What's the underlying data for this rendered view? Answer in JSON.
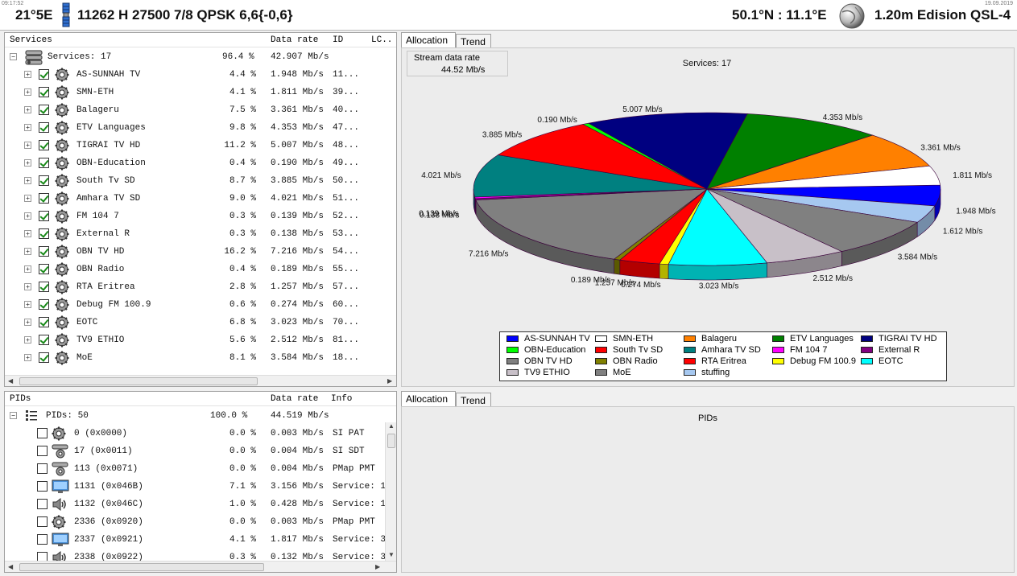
{
  "top_bar": {
    "time": "09:17:52",
    "date": "19.09.2019",
    "satellite_pos": "21°5E",
    "transponder": "11262 H 27500 7/8 QPSK 6,6{-0,6}",
    "coords": "50.1°N : 11.1°E",
    "dish": "1.20m Edision QSL-4"
  },
  "services": {
    "columns": {
      "name": "Services",
      "rate": "Data rate",
      "id": "ID",
      "lc": "LC.."
    },
    "root": {
      "label": "Services: 17",
      "pct": "96.4 %",
      "rate": "42.907 Mb/s"
    },
    "rows": [
      {
        "name": "AS-SUNNAH TV",
        "pct": "4.4 %",
        "rate": "1.948 Mb/s",
        "id": "11..."
      },
      {
        "name": "SMN-ETH",
        "pct": "4.1 %",
        "rate": "1.811 Mb/s",
        "id": "39..."
      },
      {
        "name": "Balageru",
        "pct": "7.5 %",
        "rate": "3.361 Mb/s",
        "id": "40..."
      },
      {
        "name": "ETV Languages",
        "pct": "9.8 %",
        "rate": "4.353 Mb/s",
        "id": "47..."
      },
      {
        "name": "TIGRAI TV HD",
        "pct": "11.2 %",
        "rate": "5.007 Mb/s",
        "id": "48..."
      },
      {
        "name": "OBN-Education",
        "pct": "0.4 %",
        "rate": "0.190 Mb/s",
        "id": "49..."
      },
      {
        "name": "South Tv SD",
        "pct": "8.7 %",
        "rate": "3.885 Mb/s",
        "id": "50..."
      },
      {
        "name": "Amhara TV SD",
        "pct": "9.0 %",
        "rate": "4.021 Mb/s",
        "id": "51..."
      },
      {
        "name": "FM 104 7",
        "pct": "0.3 %",
        "rate": "0.139 Mb/s",
        "id": "52..."
      },
      {
        "name": "External R",
        "pct": "0.3 %",
        "rate": "0.138 Mb/s",
        "id": "53..."
      },
      {
        "name": "OBN TV HD",
        "pct": "16.2 %",
        "rate": "7.216 Mb/s",
        "id": "54..."
      },
      {
        "name": "OBN Radio",
        "pct": "0.4 %",
        "rate": "0.189 Mb/s",
        "id": "55..."
      },
      {
        "name": "RTA Eritrea",
        "pct": "2.8 %",
        "rate": "1.257 Mb/s",
        "id": "57..."
      },
      {
        "name": "Debug FM 100.9",
        "pct": "0.6 %",
        "rate": "0.274 Mb/s",
        "id": "60..."
      },
      {
        "name": "EOTC",
        "pct": "6.8 %",
        "rate": "3.023 Mb/s",
        "id": "70..."
      },
      {
        "name": "TV9 ETHIO",
        "pct": "5.6 %",
        "rate": "2.512 Mb/s",
        "id": "81..."
      },
      {
        "name": "MoE",
        "pct": "8.1 %",
        "rate": "3.584 Mb/s",
        "id": "18..."
      }
    ]
  },
  "pids": {
    "columns": {
      "name": "PIDs",
      "rate": "Data rate",
      "info": "Info"
    },
    "root": {
      "label": "PIDs: 50",
      "pct": "100.0 %",
      "rate": "44.519 Mb/s"
    },
    "rows": [
      {
        "name": "0 (0x0000)",
        "pct": "0.0 %",
        "rate": "0.003 Mb/s",
        "info": "SI PAT",
        "icon": "gear"
      },
      {
        "name": "17 (0x0011)",
        "pct": "0.0 %",
        "rate": "0.004 Mb/s",
        "info": "SI SDT",
        "icon": "gears"
      },
      {
        "name": "113 (0x0071)",
        "pct": "0.0 %",
        "rate": "0.004 Mb/s",
        "info": "PMap PMT",
        "icon": "gears"
      },
      {
        "name": "1131 (0x046B)",
        "pct": "7.1 %",
        "rate": "3.156 Mb/s",
        "info": "Service: 1",
        "icon": "monitor"
      },
      {
        "name": "1132 (0x046C)",
        "pct": "1.0 %",
        "rate": "0.428 Mb/s",
        "info": "Service: 1",
        "icon": "speaker"
      },
      {
        "name": "2336 (0x0920)",
        "pct": "0.0 %",
        "rate": "0.003 Mb/s",
        "info": "PMap PMT",
        "icon": "gear"
      },
      {
        "name": "2337 (0x0921)",
        "pct": "4.1 %",
        "rate": "1.817 Mb/s",
        "info": "Service: 3",
        "icon": "monitor"
      },
      {
        "name": "2338 (0x0922)",
        "pct": "0.3 %",
        "rate": "0.132 Mb/s",
        "info": "Service: 3",
        "icon": "speaker"
      }
    ]
  },
  "alloc_tabs": {
    "allocation": "Allocation",
    "trend": "Trend"
  },
  "stream": {
    "label": "Stream data rate",
    "value": "44.52 Mb/s"
  },
  "pids_chart_title": "PIDs",
  "chart_data": {
    "type": "pie",
    "title": "Services: 17",
    "unit": "Mb/s",
    "slices": [
      {
        "name": "AS-SUNNAH TV",
        "value": 1.948,
        "color": "#0000ff",
        "label": "1.948 Mb/s"
      },
      {
        "name": "stuffing",
        "value": 1.612,
        "color": "#a6c8f0",
        "label": "1.612 Mb/s"
      },
      {
        "name": "MoE",
        "value": 3.584,
        "color": "#808080",
        "label": "3.584 Mb/s"
      },
      {
        "name": "TV9 ETHIO",
        "value": 2.512,
        "color": "#c8c0c8",
        "label": "2.512 Mb/s"
      },
      {
        "name": "EOTC",
        "value": 3.023,
        "color": "#00ffff",
        "label": "3.023 Mb/s"
      },
      {
        "name": "Debug FM 100.9",
        "value": 0.274,
        "color": "#ffff00",
        "label": "0.274 Mb/s"
      },
      {
        "name": "RTA Eritrea",
        "value": 1.257,
        "color": "#ff0000",
        "label": "1.257 Mb/s"
      },
      {
        "name": "OBN Radio",
        "value": 0.189,
        "color": "#808000",
        "label": "0.189 Mb/s"
      },
      {
        "name": "OBN TV HD",
        "value": 7.216,
        "color": "#808080",
        "label": "7.216 Mb/s"
      },
      {
        "name": "External R",
        "value": 0.138,
        "color": "#800080",
        "label": "0.138 Mb/s"
      },
      {
        "name": "FM 104 7",
        "value": 0.139,
        "color": "#ff00ff",
        "label": "0.139 Mb/s"
      },
      {
        "name": "Amhara TV SD",
        "value": 4.021,
        "color": "#008080",
        "label": "4.021 Mb/s"
      },
      {
        "name": "South Tv SD",
        "value": 3.885,
        "color": "#ff0000",
        "label": "3.885 Mb/s"
      },
      {
        "name": "OBN-Education",
        "value": 0.19,
        "color": "#00ff00",
        "label": "0.190 Mb/s"
      },
      {
        "name": "TIGRAI TV HD",
        "value": 5.007,
        "color": "#000080",
        "label": "5.007 Mb/s"
      },
      {
        "name": "ETV Languages",
        "value": 4.353,
        "color": "#008000",
        "label": "4.353 Mb/s"
      },
      {
        "name": "Balageru",
        "value": 3.361,
        "color": "#ff8000",
        "label": "3.361 Mb/s"
      },
      {
        "name": "SMN-ETH",
        "value": 1.811,
        "color": "#ffffff",
        "label": "1.811 Mb/s"
      }
    ],
    "legend": [
      {
        "name": "AS-SUNNAH TV",
        "color": "#0000ff"
      },
      {
        "name": "SMN-ETH",
        "color": "#ffffff"
      },
      {
        "name": "Balageru",
        "color": "#ff8000"
      },
      {
        "name": "ETV Languages",
        "color": "#008000"
      },
      {
        "name": "TIGRAI TV HD",
        "color": "#000080"
      },
      {
        "name": "OBN-Education",
        "color": "#00ff00"
      },
      {
        "name": "South Tv SD",
        "color": "#ff0000"
      },
      {
        "name": "Amhara TV SD",
        "color": "#008080"
      },
      {
        "name": "FM 104 7",
        "color": "#ff00ff"
      },
      {
        "name": "External R",
        "color": "#800080"
      },
      {
        "name": "OBN TV HD",
        "color": "#808080"
      },
      {
        "name": "OBN Radio",
        "color": "#808000"
      },
      {
        "name": "RTA Eritrea",
        "color": "#ff0000"
      },
      {
        "name": "Debug FM 100.9",
        "color": "#ffff00"
      },
      {
        "name": "EOTC",
        "color": "#00ffff"
      },
      {
        "name": "TV9 ETHIO",
        "color": "#c8c0c8"
      },
      {
        "name": "MoE",
        "color": "#808080"
      },
      {
        "name": "stuffing",
        "color": "#a6c8f0"
      }
    ]
  }
}
